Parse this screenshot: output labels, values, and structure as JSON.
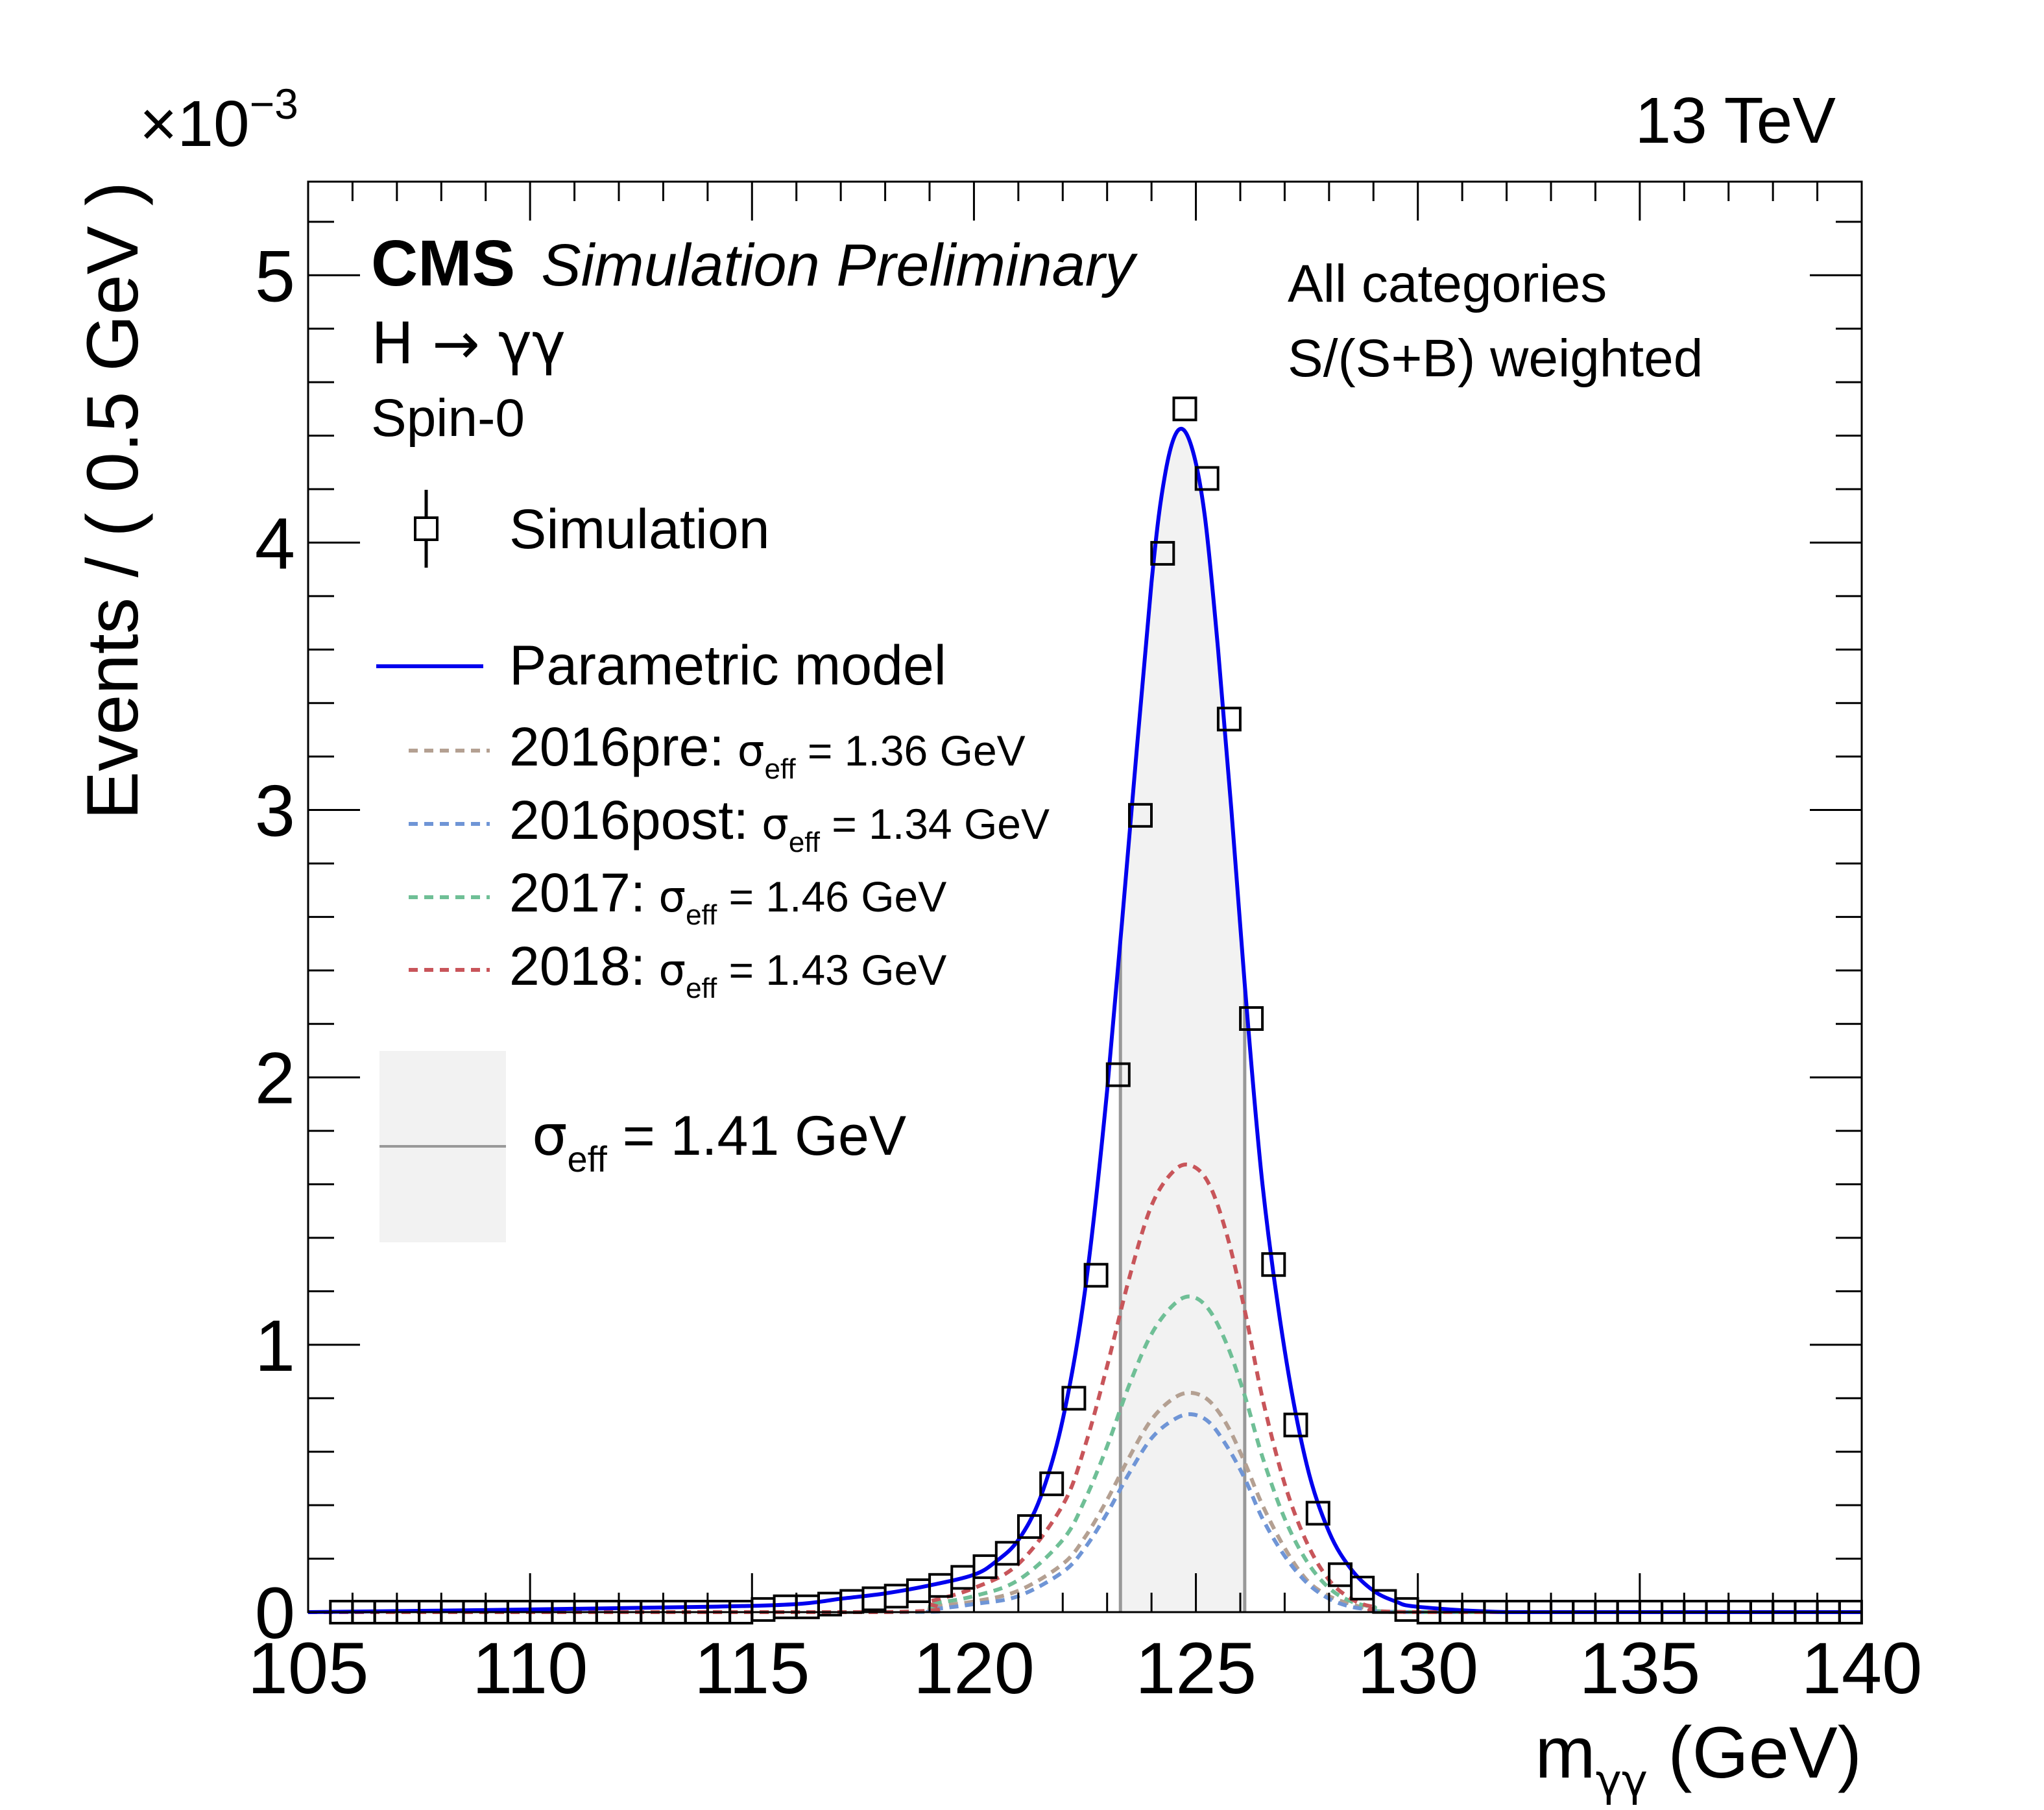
{
  "chart_data": {
    "type": "line",
    "energy_label": "13 TeV",
    "experiment": "CMS",
    "experiment_sub": "Simulation Preliminary",
    "process": "H → γγ",
    "spin": "Spin-0",
    "categories_text_1": "All categories",
    "categories_text_2": "S/(S+B) weighted",
    "xlabel": {
      "main": "m",
      "sub": "γγ",
      "unit": " (GeV)"
    },
    "ylabel": "Events / ( 0.5 GeV )",
    "y_exponent": {
      "base": "×10",
      "exp": "−3"
    },
    "xlim": [
      105,
      140
    ],
    "ylim": [
      0,
      5.35
    ],
    "x_ticks": [
      "105",
      "110",
      "115",
      "120",
      "125",
      "130",
      "135",
      "140"
    ],
    "y_ticks": [
      "0",
      "1",
      "2",
      "3",
      "4",
      "5"
    ],
    "sigma_eff_band": {
      "low": 123.3,
      "high": 126.1,
      "label_main": "σ",
      "label_sub": "eff",
      "label_rest": " = 1.41 GeV"
    },
    "legend": [
      {
        "key": "simulation",
        "label": "Simulation"
      },
      {
        "key": "model",
        "label": "Parametric model"
      },
      {
        "key": "y2016pre",
        "label": "2016pre:",
        "sigma": " = 1.36 GeV"
      },
      {
        "key": "y2016post",
        "label": "2016post:",
        "sigma": " = 1.34 GeV"
      },
      {
        "key": "y2017",
        "label": "2017:",
        "sigma": " = 1.46 GeV"
      },
      {
        "key": "y2018",
        "label": "2018:",
        "sigma": " = 1.43 GeV"
      }
    ],
    "simulation_points": {
      "x": [
        105.75,
        106.25,
        106.75,
        107.25,
        107.75,
        108.25,
        108.75,
        109.25,
        109.75,
        110.25,
        110.75,
        111.25,
        111.75,
        112.25,
        112.75,
        113.25,
        113.75,
        114.25,
        114.75,
        115.25,
        115.75,
        116.25,
        116.75,
        117.25,
        117.75,
        118.25,
        118.75,
        119.25,
        119.75,
        120.25,
        120.75,
        121.25,
        121.75,
        122.25,
        122.75,
        123.25,
        123.75,
        124.25,
        124.75,
        125.25,
        125.75,
        126.25,
        126.75,
        127.25,
        127.75,
        128.25,
        128.75,
        129.25,
        129.75,
        130.25,
        130.75,
        131.25,
        131.75,
        132.25,
        132.75,
        133.25,
        133.75,
        134.25,
        134.75,
        135.25,
        135.75,
        136.25,
        136.75,
        137.25,
        137.75,
        138.25,
        138.75,
        139.25,
        139.75
      ],
      "y": [
        0.0,
        0.0,
        0.0,
        0.0,
        0.0,
        0.0,
        0.0,
        0.0,
        0.0,
        0.0,
        0.0,
        0.0,
        0.0,
        0.0,
        0.0,
        0.0,
        0.0,
        0.0,
        0.0,
        0.01,
        0.02,
        0.02,
        0.03,
        0.04,
        0.05,
        0.06,
        0.08,
        0.1,
        0.13,
        0.17,
        0.22,
        0.32,
        0.48,
        0.8,
        1.26,
        2.01,
        2.98,
        3.96,
        4.5,
        4.24,
        3.34,
        2.22,
        1.3,
        0.7,
        0.37,
        0.14,
        0.09,
        0.04,
        0.01,
        0.0,
        0.0,
        0.0,
        0.0,
        0.0,
        0.0,
        0.0,
        0.0,
        0.0,
        0.0,
        0.0,
        0.0,
        0.0,
        0.0,
        0.0,
        0.0,
        0.0,
        0.0,
        0.0,
        0.0
      ]
    },
    "series": [
      {
        "name": "Parametric model",
        "key": "model",
        "color": "#0000ee",
        "dashed": false,
        "x": [
          105,
          110,
          114,
          116,
          117,
          118,
          119,
          120,
          120.5,
          121,
          121.5,
          122,
          122.5,
          123,
          123.5,
          124,
          124.3,
          124.6,
          124.9,
          125.2,
          125.5,
          125.8,
          126.1,
          126.5,
          127,
          127.5,
          128,
          128.5,
          129,
          129.5,
          130,
          132,
          135,
          140
        ],
        "y": [
          0.0,
          0.01,
          0.02,
          0.03,
          0.05,
          0.07,
          0.1,
          0.14,
          0.19,
          0.27,
          0.43,
          0.72,
          1.2,
          1.95,
          2.9,
          3.85,
          4.25,
          4.42,
          4.36,
          4.1,
          3.6,
          3.0,
          2.35,
          1.6,
          0.98,
          0.55,
          0.3,
          0.16,
          0.08,
          0.04,
          0.02,
          0.0,
          0.0,
          0.0
        ]
      },
      {
        "name": "2016pre",
        "key": "y2016pre",
        "color": "#b4a092",
        "dashed": true,
        "x": [
          105,
          118,
          119,
          120,
          121,
          122,
          122.5,
          123,
          123.5,
          124,
          124.5,
          124.9,
          125.3,
          125.7,
          126.1,
          126.5,
          127,
          127.5,
          128,
          128.5,
          129,
          130,
          140
        ],
        "y": [
          0.0,
          0.0,
          0.02,
          0.04,
          0.08,
          0.18,
          0.28,
          0.42,
          0.58,
          0.72,
          0.8,
          0.82,
          0.79,
          0.7,
          0.56,
          0.4,
          0.24,
          0.12,
          0.06,
          0.03,
          0.01,
          0.0,
          0.0
        ]
      },
      {
        "name": "2016post",
        "key": "y2016post",
        "color": "#6f95d6",
        "dashed": true,
        "x": [
          105,
          118,
          119,
          120,
          121,
          122,
          122.5,
          123,
          123.5,
          124,
          124.5,
          124.9,
          125.3,
          125.7,
          126.1,
          126.5,
          127,
          127.5,
          128,
          128.5,
          129,
          130,
          140
        ],
        "y": [
          0.0,
          0.0,
          0.01,
          0.03,
          0.06,
          0.15,
          0.24,
          0.37,
          0.52,
          0.65,
          0.72,
          0.74,
          0.71,
          0.62,
          0.5,
          0.35,
          0.21,
          0.11,
          0.05,
          0.02,
          0.01,
          0.0,
          0.0
        ]
      },
      {
        "name": "2017",
        "key": "y2017",
        "color": "#6fbf96",
        "dashed": true,
        "x": [
          105,
          118,
          119,
          120,
          121,
          122,
          122.5,
          123,
          123.5,
          124,
          124.5,
          124.9,
          125.3,
          125.7,
          126.1,
          126.5,
          127,
          127.5,
          128,
          128.5,
          129,
          130,
          140
        ],
        "y": [
          0.0,
          0.0,
          0.03,
          0.06,
          0.12,
          0.27,
          0.42,
          0.62,
          0.85,
          1.04,
          1.15,
          1.18,
          1.13,
          1.0,
          0.81,
          0.58,
          0.35,
          0.19,
          0.09,
          0.04,
          0.02,
          0.0,
          0.0
        ]
      },
      {
        "name": "2018",
        "key": "y2018",
        "color": "#c8555a",
        "dashed": true,
        "x": [
          105,
          118,
          119,
          120,
          121,
          122,
          122.5,
          123,
          123.5,
          124,
          124.5,
          124.9,
          125.3,
          125.7,
          126.1,
          126.5,
          127,
          127.5,
          128,
          128.5,
          129,
          130,
          140
        ],
        "y": [
          0.0,
          0.0,
          0.04,
          0.09,
          0.18,
          0.4,
          0.62,
          0.92,
          1.25,
          1.52,
          1.65,
          1.67,
          1.6,
          1.41,
          1.13,
          0.8,
          0.48,
          0.26,
          0.12,
          0.05,
          0.02,
          0.0,
          0.0
        ]
      }
    ],
    "band_color": "#f2f2f2",
    "band_line_color": "#999999",
    "grid": false,
    "legend_position": "top-left"
  }
}
